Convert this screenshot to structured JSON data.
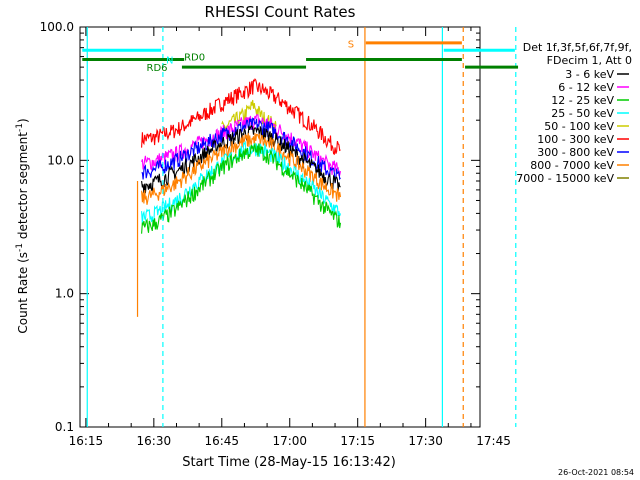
{
  "chart_data": {
    "type": "line",
    "title": "RHESSI Count Rates",
    "xlabel": "Start Time (28-May-15 16:13:42)",
    "ylabel_main": "Count Rate (s",
    "ylabel_sup1": "-1",
    "ylabel_mid": " detector segment",
    "ylabel_sup2": "-1",
    "ylabel_end": ")",
    "yscale": "log",
    "ylim": [
      0.1,
      100
    ],
    "xlim_min": [
      973.7,
      1062
    ],
    "x_ticks": [
      "16:15",
      "16:30",
      "16:45",
      "17:00",
      "17:15",
      "17:30",
      "17:45"
    ],
    "x_tick_values_min": [
      975,
      990,
      1005,
      1020,
      1035,
      1050,
      1065
    ],
    "y_ticks": [
      "100.0",
      "10.0",
      "1.0",
      "0.1"
    ],
    "y_tick_values": [
      100,
      10,
      1,
      0.1
    ],
    "legend": {
      "header": [
        "Det 1f,3f,5f,6f,7f,9f,",
        "FDecim 1, Att 0"
      ],
      "entries": [
        {
          "label": "3 - 6 keV",
          "color": "#000000"
        },
        {
          "label": "6 - 12 keV",
          "color": "#ff00ff"
        },
        {
          "label": "12 - 25 keV",
          "color": "#00cc00"
        },
        {
          "label": "25 - 50 keV",
          "color": "#00ffff"
        },
        {
          "label": "50 - 100 keV",
          "color": "#cccc00"
        },
        {
          "label": "100 - 300 keV",
          "color": "#ff0000"
        },
        {
          "label": "300 - 800 keV",
          "color": "#0000ff"
        },
        {
          "label": "800 - 7000 keV",
          "color": "#ff8000"
        },
        {
          "label": "7000 - 15000 keV",
          "color": "#808000"
        }
      ]
    },
    "series": [
      {
        "name": "100 - 300 keV",
        "color": "#ff0000",
        "points": [
          [
            987.3,
            14.5
          ],
          [
            990,
            14.8
          ],
          [
            995,
            17
          ],
          [
            1000,
            21
          ],
          [
            1005,
            27
          ],
          [
            1010,
            33
          ],
          [
            1012,
            36
          ],
          [
            1014,
            34
          ],
          [
            1018,
            28
          ],
          [
            1022,
            22
          ],
          [
            1026,
            17
          ],
          [
            1029,
            13.5
          ],
          [
            1031.2,
            12
          ]
        ]
      },
      {
        "name": "50 - 100 keV",
        "color": "#cccc00",
        "points": [
          [
            1005,
            17
          ],
          [
            1007,
            19
          ],
          [
            1010,
            22
          ],
          [
            1012,
            26
          ],
          [
            1014,
            21
          ],
          [
            1017,
            18
          ]
        ]
      },
      {
        "name": "6 - 12 keV",
        "color": "#ff00ff",
        "points": [
          [
            987.3,
            9.5
          ],
          [
            990,
            9.8
          ],
          [
            995,
            11.2
          ],
          [
            1000,
            13.5
          ],
          [
            1005,
            16
          ],
          [
            1010,
            19
          ],
          [
            1013,
            20
          ],
          [
            1016,
            18.5
          ],
          [
            1020,
            15
          ],
          [
            1024,
            12
          ],
          [
            1028,
            9.5
          ],
          [
            1031.2,
            8.3
          ]
        ]
      },
      {
        "name": "300 - 800 keV",
        "color": "#0000ff",
        "points": [
          [
            987.3,
            8.2
          ],
          [
            990,
            8.5
          ],
          [
            995,
            10
          ],
          [
            1000,
            12.5
          ],
          [
            1005,
            15.5
          ],
          [
            1010,
            18
          ],
          [
            1013,
            18.5
          ],
          [
            1016,
            17
          ],
          [
            1020,
            14
          ],
          [
            1024,
            11
          ],
          [
            1028,
            8.6
          ],
          [
            1031.2,
            7.4
          ]
        ]
      },
      {
        "name": "3 - 6 keV",
        "color": "#000000",
        "points": [
          [
            987.3,
            6.5
          ],
          [
            990,
            6.8
          ],
          [
            995,
            8.2
          ],
          [
            1000,
            10.5
          ],
          [
            1005,
            13.5
          ],
          [
            1010,
            16
          ],
          [
            1013,
            16.5
          ],
          [
            1016,
            15
          ],
          [
            1020,
            12
          ],
          [
            1024,
            9.5
          ],
          [
            1028,
            7.5
          ],
          [
            1031.2,
            6.3
          ]
        ]
      },
      {
        "name": "800 - 7000 keV",
        "color": "#ff8000",
        "points": [
          [
            987.3,
            5.2
          ],
          [
            990,
            5.5
          ],
          [
            995,
            6.8
          ],
          [
            1000,
            9
          ],
          [
            1005,
            11.5
          ],
          [
            1010,
            14
          ],
          [
            1013,
            14.5
          ],
          [
            1016,
            13
          ],
          [
            1020,
            10.5
          ],
          [
            1024,
            8.2
          ],
          [
            1028,
            6.3
          ],
          [
            1031.2,
            5.3
          ]
        ]
      },
      {
        "name": "25 - 50 keV",
        "color": "#00ffff",
        "points": [
          [
            987.3,
            3.7
          ],
          [
            990,
            3.9
          ],
          [
            995,
            5
          ],
          [
            1000,
            7
          ],
          [
            1005,
            9.5
          ],
          [
            1010,
            12
          ],
          [
            1013,
            12.5
          ],
          [
            1016,
            11
          ],
          [
            1020,
            8.8
          ],
          [
            1024,
            6.7
          ],
          [
            1028,
            5
          ],
          [
            1031.2,
            4
          ]
        ]
      },
      {
        "name": "12 - 25 keV",
        "color": "#00cc00",
        "points": [
          [
            987.3,
            3.1
          ],
          [
            990,
            3.3
          ],
          [
            995,
            4.3
          ],
          [
            1000,
            6.2
          ],
          [
            1005,
            8.8
          ],
          [
            1010,
            11.5
          ],
          [
            1013,
            12
          ],
          [
            1016,
            10.5
          ],
          [
            1020,
            8
          ],
          [
            1024,
            6
          ],
          [
            1028,
            4.3
          ],
          [
            1031.2,
            3.4
          ]
        ]
      }
    ],
    "vertical_lines": [
      {
        "x": 975.3,
        "color": "#00ffff",
        "style": "solid"
      },
      {
        "x": 992.0,
        "color": "#00ffff",
        "style": "dashed"
      },
      {
        "x": 1036.6,
        "color": "#ff8000",
        "style": "solid"
      },
      {
        "x": 1053.7,
        "color": "#00ffff",
        "style": "solid"
      },
      {
        "x": 1058.3,
        "color": "#ff8000",
        "style": "dashed"
      },
      {
        "x": 1069.9,
        "color": "#00ffff",
        "style": "dashed"
      }
    ],
    "flag_bars": [
      {
        "color": "#00ffff",
        "y": 67,
        "segments": [
          [
            974.2,
            991.6
          ],
          [
            1054,
            1069.7
          ]
        ]
      },
      {
        "color": "#ff8000",
        "y": 76,
        "segments": [
          [
            1036.8,
            1058
          ]
        ]
      },
      {
        "color": "#008000",
        "y": 57,
        "segments": [
          [
            974.2,
            996.7
          ],
          [
            1023.6,
            1058
          ]
        ]
      },
      {
        "color": "#008000",
        "y": 50,
        "segments": [
          [
            996.2,
            1023.6
          ],
          [
            1058.7,
            1070.4
          ]
        ]
      }
    ],
    "flag_labels": [
      {
        "text": "N",
        "x": 993.5,
        "y": 57,
        "color": "#00ffff"
      },
      {
        "text": "RD0",
        "x": 999,
        "y": 60,
        "color": "#008000"
      },
      {
        "text": "RD6",
        "x": 990.7,
        "y": 50,
        "color": "#008000"
      },
      {
        "text": "S",
        "x": 1033.5,
        "y": 75,
        "color": "#ff8000"
      }
    ],
    "spike": {
      "x": 986.4,
      "color": "#ff8000",
      "from": 0.67,
      "to": 7
    },
    "timestamp": "26-Oct-2021 08:54"
  }
}
